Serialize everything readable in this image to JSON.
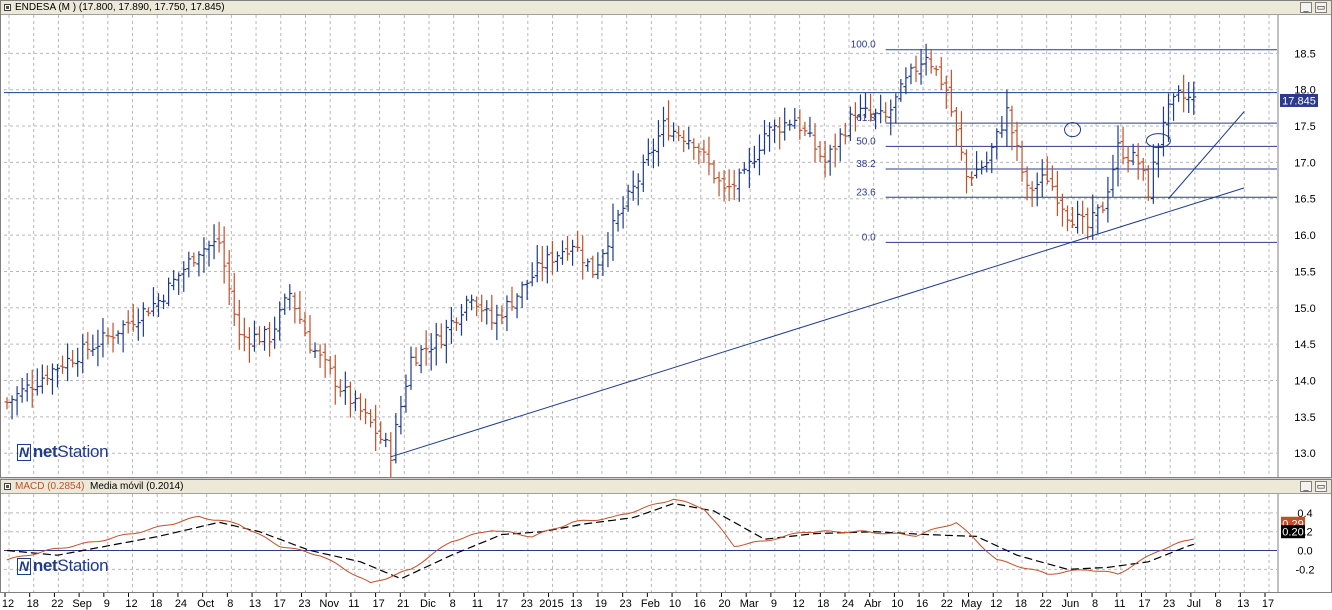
{
  "price_panel": {
    "title": "ENDESA (M ) (17.800, 17.890, 17.750, 17.845)",
    "last_label": "17.845",
    "logo_bold": "net",
    "logo_rest": "Station"
  },
  "macd_panel": {
    "title_macd": "MACD (0.2854)",
    "title_ma": "Media móvil (0.2014)",
    "macd_label": "0.29",
    "signal_label": "0.20"
  },
  "colors": {
    "up": "#1d3b8a",
    "down": "#c0502a",
    "line": "#1d3b8a",
    "macd": "#c0502a",
    "signal": "#000000"
  },
  "chart_data": [
    {
      "type": "ohlc",
      "title": "ENDESA (M )",
      "current": {
        "open": 17.8,
        "high": 17.89,
        "low": 17.75,
        "close": 17.845
      },
      "ylim": [
        12.7,
        19.0
      ],
      "y_ticks": [
        13.0,
        13.5,
        14.0,
        14.5,
        15.0,
        15.5,
        16.0,
        16.5,
        17.0,
        17.5,
        18.0,
        18.5
      ],
      "x_tick_labels": [
        "12",
        "18",
        "22",
        "Sep",
        "9",
        "12",
        "18",
        "24",
        "Oct",
        "8",
        "13",
        "17",
        "23",
        "Nov",
        "11",
        "17",
        "21",
        "Dic",
        "8",
        "11",
        "17",
        "23",
        "2015",
        "13",
        "19",
        "23",
        "Feb",
        "10",
        "16",
        "20",
        "Mar",
        "9",
        "12",
        "18",
        "24",
        "Abr",
        "10",
        "16",
        "22",
        "May",
        "12",
        "18",
        "22",
        "Jun",
        "8",
        "11",
        "17",
        "23",
        "Jul",
        "8",
        "13",
        "17"
      ],
      "close_anchors": [
        [
          0,
          13.7
        ],
        [
          10,
          14.2
        ],
        [
          20,
          14.6
        ],
        [
          30,
          15.1
        ],
        [
          38,
          15.8
        ],
        [
          42,
          15.9
        ],
        [
          46,
          14.6
        ],
        [
          52,
          14.6
        ],
        [
          56,
          15.2
        ],
        [
          60,
          14.5
        ],
        [
          66,
          13.9
        ],
        [
          72,
          13.4
        ],
        [
          76,
          13.0
        ],
        [
          80,
          14.3
        ],
        [
          86,
          14.6
        ],
        [
          92,
          15.2
        ],
        [
          96,
          14.8
        ],
        [
          100,
          15.1
        ],
        [
          106,
          15.6
        ],
        [
          112,
          15.9
        ],
        [
          116,
          15.5
        ],
        [
          120,
          16.1
        ],
        [
          126,
          16.9
        ],
        [
          130,
          17.5
        ],
        [
          136,
          17.3
        ],
        [
          142,
          16.6
        ],
        [
          146,
          16.8
        ],
        [
          150,
          17.4
        ],
        [
          156,
          17.6
        ],
        [
          162,
          17.0
        ],
        [
          168,
          17.7
        ],
        [
          174,
          17.6
        ],
        [
          178,
          18.1
        ],
        [
          182,
          18.5
        ],
        [
          186,
          18.0
        ],
        [
          190,
          16.8
        ],
        [
          194,
          17.0
        ],
        [
          198,
          17.7
        ],
        [
          202,
          16.6
        ],
        [
          206,
          16.8
        ],
        [
          210,
          16.3
        ],
        [
          214,
          16.1
        ],
        [
          217,
          16.4
        ],
        [
          220,
          17.2
        ],
        [
          224,
          17.0
        ],
        [
          226,
          16.6
        ],
        [
          229,
          17.6
        ],
        [
          232,
          17.9
        ],
        [
          235,
          17.85
        ]
      ],
      "fibonacci": {
        "levels": [
          {
            "label": "100.0",
            "price": 18.55
          },
          {
            "label": "61.8",
            "price": 17.54
          },
          {
            "label": "50.0",
            "price": 17.22
          },
          {
            "label": "38.2",
            "price": 16.91
          },
          {
            "label": "23.6",
            "price": 16.52
          },
          {
            "label": "0.0",
            "price": 15.9
          }
        ]
      },
      "reference_line": 17.96,
      "trendlines": [
        {
          "from": [
            76,
            12.95
          ],
          "to": [
            245,
            16.65
          ]
        },
        {
          "from": [
            230,
            16.5
          ],
          "to": [
            245,
            17.7
          ]
        }
      ],
      "circles": [
        {
          "at": [
            211,
            17.45
          ]
        },
        {
          "at": [
            228,
            17.3
          ]
        }
      ]
    },
    {
      "type": "line",
      "title": "MACD",
      "ylim": [
        -0.42,
        0.58
      ],
      "y_ticks": [
        -0.2,
        0.0,
        0.2,
        0.4
      ],
      "series": [
        {
          "name": "MACD",
          "anchors": [
            [
              0,
              -0.1
            ],
            [
              8,
              0.0
            ],
            [
              18,
              0.1
            ],
            [
              28,
              0.22
            ],
            [
              38,
              0.36
            ],
            [
              46,
              0.28
            ],
            [
              54,
              0.05
            ],
            [
              62,
              -0.05
            ],
            [
              72,
              -0.35
            ],
            [
              80,
              -0.2
            ],
            [
              88,
              0.1
            ],
            [
              96,
              0.22
            ],
            [
              104,
              0.15
            ],
            [
              112,
              0.3
            ],
            [
              120,
              0.35
            ],
            [
              126,
              0.45
            ],
            [
              132,
              0.55
            ],
            [
              138,
              0.45
            ],
            [
              144,
              0.05
            ],
            [
              150,
              0.1
            ],
            [
              158,
              0.2
            ],
            [
              170,
              0.2
            ],
            [
              180,
              0.16
            ],
            [
              188,
              0.3
            ],
            [
              196,
              -0.1
            ],
            [
              206,
              -0.25
            ],
            [
              214,
              -0.2
            ],
            [
              220,
              -0.25
            ],
            [
              228,
              0.0
            ],
            [
              236,
              0.15
            ],
            [
              243,
              0.29
            ]
          ]
        },
        {
          "name": "Media móvil",
          "anchors": [
            [
              0,
              0.0
            ],
            [
              10,
              -0.05
            ],
            [
              20,
              0.05
            ],
            [
              30,
              0.15
            ],
            [
              42,
              0.3
            ],
            [
              50,
              0.2
            ],
            [
              60,
              0.0
            ],
            [
              70,
              -0.12
            ],
            [
              78,
              -0.3
            ],
            [
              88,
              -0.05
            ],
            [
              98,
              0.17
            ],
            [
              106,
              0.2
            ],
            [
              114,
              0.28
            ],
            [
              124,
              0.35
            ],
            [
              132,
              0.5
            ],
            [
              140,
              0.42
            ],
            [
              150,
              0.12
            ],
            [
              160,
              0.18
            ],
            [
              172,
              0.2
            ],
            [
              182,
              0.17
            ],
            [
              192,
              0.15
            ],
            [
              200,
              -0.05
            ],
            [
              210,
              -0.2
            ],
            [
              218,
              -0.18
            ],
            [
              226,
              -0.12
            ],
            [
              234,
              0.05
            ],
            [
              243,
              0.2
            ]
          ]
        }
      ]
    }
  ]
}
